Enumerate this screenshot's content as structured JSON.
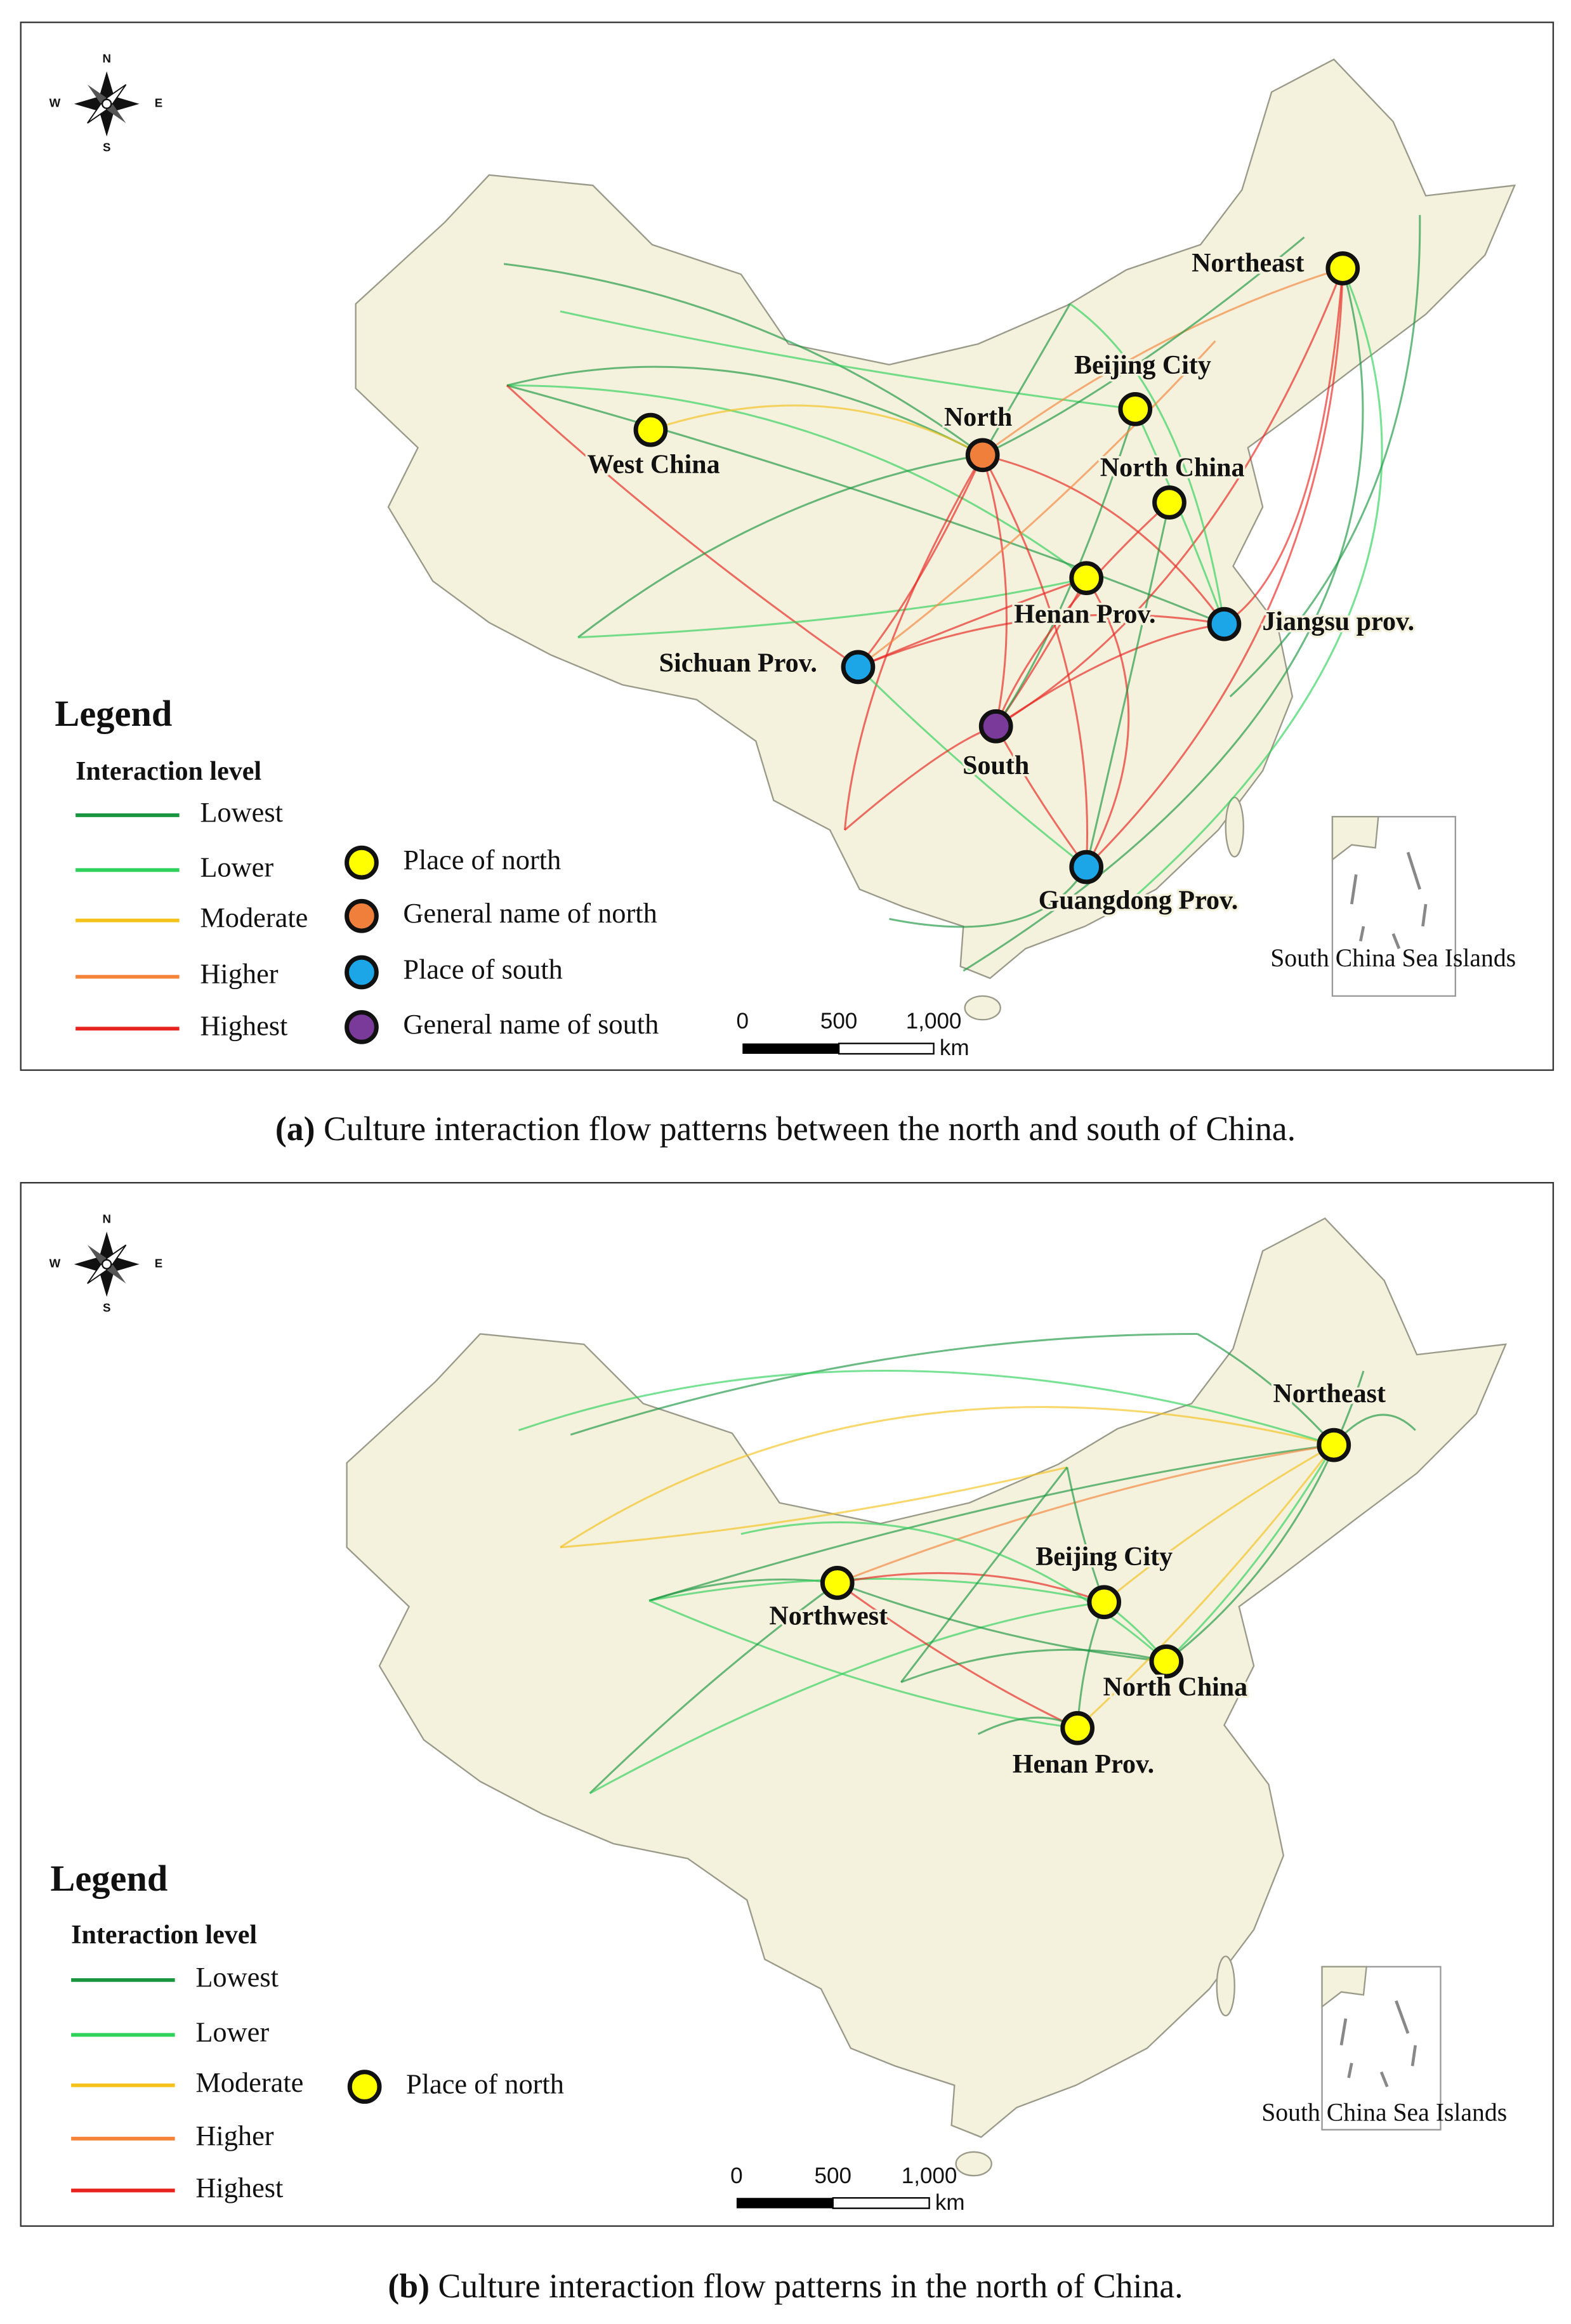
{
  "panels": [
    {
      "caption": {
        "label": "(a)",
        "text": "Culture interaction flow patterns between the north and south of China."
      },
      "compass": {
        "n": "N",
        "s": "S",
        "w": "W",
        "e": "E"
      },
      "places": [
        {
          "label": "Northeast",
          "kind": 0
        },
        {
          "label": "Beijing City",
          "kind": 0
        },
        {
          "label": "North",
          "kind": 1
        },
        {
          "label": "West China",
          "kind": 0
        },
        {
          "label": "North China",
          "kind": 0
        },
        {
          "label": "Henan Prov.",
          "kind": 0
        },
        {
          "label": "Jiangsu prov.",
          "kind": 2
        },
        {
          "label": "Sichuan Prov.",
          "kind": 2
        },
        {
          "label": "South",
          "kind": 3
        },
        {
          "label": "Guangdong Prov.",
          "kind": 2
        }
      ],
      "legend": {
        "title": "Legend",
        "subtitle": "Interaction level",
        "levels": [
          {
            "name": "Lowest",
            "color": "#1a9641"
          },
          {
            "name": "Lower",
            "color": "#2ed15a"
          },
          {
            "name": "Moderate",
            "color": "#f5c21b"
          },
          {
            "name": "Higher",
            "color": "#f5843a"
          },
          {
            "name": "Highest",
            "color": "#e8231f"
          }
        ],
        "symbols": [
          {
            "name": "Place of north",
            "color": "#ffff00"
          },
          {
            "name": "General name of north",
            "color": "#f07f3c"
          },
          {
            "name": "Place of south",
            "color": "#1ca6e8"
          },
          {
            "name": "General name of south",
            "color": "#7a3a9a"
          }
        ]
      },
      "scale_bar": {
        "ticks": [
          "0",
          "500",
          "1,000"
        ],
        "unit": "km"
      },
      "inset": "South China Sea Islands"
    },
    {
      "caption": {
        "label": "(b)",
        "text": "Culture interaction flow patterns in the north of China."
      },
      "compass": {
        "n": "N",
        "s": "S",
        "w": "W",
        "e": "E"
      },
      "places": [
        {
          "label": "Northeast",
          "kind": 0
        },
        {
          "label": "Northwest",
          "kind": 0
        },
        {
          "label": "Beijing City",
          "kind": 0
        },
        {
          "label": "North China",
          "kind": 0
        },
        {
          "label": "Henan Prov.",
          "kind": 0
        }
      ],
      "legend": {
        "title": "Legend",
        "subtitle": "Interaction level",
        "levels": [
          {
            "name": "Lowest",
            "color": "#1a9641"
          },
          {
            "name": "Lower",
            "color": "#2ed15a"
          },
          {
            "name": "Moderate",
            "color": "#f5c21b"
          },
          {
            "name": "Higher",
            "color": "#f5843a"
          },
          {
            "name": "Highest",
            "color": "#e8231f"
          }
        ],
        "symbols": [
          {
            "name": "Place of north",
            "color": "#ffff00"
          }
        ]
      },
      "scale_bar": {
        "ticks": [
          "0",
          "500",
          "1,000"
        ],
        "unit": "km"
      },
      "inset": "South China Sea Islands"
    }
  ]
}
